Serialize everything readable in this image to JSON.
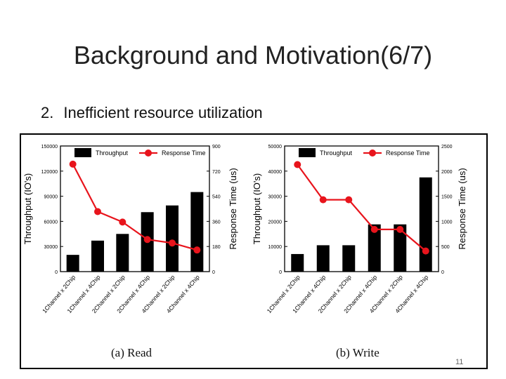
{
  "slide": {
    "title": "Background and Motivation(6/7)",
    "bullet_number": "2.",
    "bullet_text": "Inefficient resource utilization",
    "page_number": "11"
  },
  "colors": {
    "bar": "#000000",
    "line": "#e8141c",
    "text": "#000000"
  },
  "chart_data": [
    {
      "type": "bar",
      "caption": "(a)  Read",
      "categories": [
        "1Channel x 2Chip",
        "1Channel x 4Chip",
        "2Channel x 2Chip",
        "2Channel x 4Chip",
        "4Channel x 2Chip",
        "4Channel x 4Chip"
      ],
      "series": [
        {
          "name": "Throughput",
          "type": "bar",
          "axis": "left",
          "values": [
            20000,
            37000,
            45000,
            71000,
            79000,
            95000
          ]
        },
        {
          "name": "Response Time",
          "type": "line",
          "axis": "right",
          "values": [
            770,
            430,
            355,
            230,
            205,
            155
          ]
        }
      ],
      "ylabel": "Throughput (IO's)",
      "ylabel_right": "Response Time (us)",
      "ylim": [
        0,
        150000
      ],
      "ylim_right": [
        0,
        900
      ],
      "yticks": [
        "0",
        "30000",
        "60000",
        "90000",
        "120000",
        "150000"
      ],
      "yticks_right": [
        "0",
        "180",
        "360",
        "540",
        "720",
        "900"
      ],
      "legend": "top"
    },
    {
      "type": "bar",
      "caption": "(b)  Write",
      "categories": [
        "1Channel x 2Chip",
        "1Channel x 4Chip",
        "2Channel x 2Chip",
        "2Channel x 4Chip",
        "4Channel x 2Chip",
        "4Channel x 4Chip"
      ],
      "series": [
        {
          "name": "Throughput",
          "type": "bar",
          "axis": "left",
          "values": [
            7000,
            10500,
            10500,
            18800,
            18800,
            37500
          ]
        },
        {
          "name": "Response Time",
          "type": "line",
          "axis": "right",
          "values": [
            2130,
            1430,
            1430,
            840,
            840,
            410
          ]
        }
      ],
      "ylabel": "Throughput (IO's)",
      "ylabel_right": "Response Time (us)",
      "ylim": [
        0,
        50000
      ],
      "ylim_right": [
        0,
        2500
      ],
      "yticks": [
        "0",
        "10000",
        "20000",
        "30000",
        "40000",
        "50000"
      ],
      "yticks_right": [
        "0",
        "500",
        "1000",
        "1500",
        "2000",
        "2500"
      ],
      "legend": "top"
    }
  ]
}
